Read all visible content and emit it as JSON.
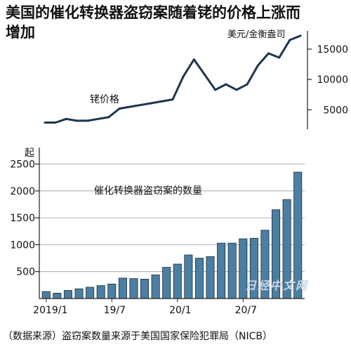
{
  "title": "美国的催化转换器盗窃案随着铑的价格上涨而增加",
  "source_note": "（数据来源）盗窃案数量来源于美国国家保险犯罪局（NICB）",
  "watermark": "日经中文网",
  "colors": {
    "bar_fill": "#4a7fa3",
    "bar_stroke": "#1e2a33",
    "line": "#1e3550"
  },
  "chart_data": [
    {
      "type": "line",
      "label": "铑价格",
      "unit": "美元/金衡盎司",
      "y_ticks": [
        5000,
        10000,
        15000
      ],
      "ylim": [
        1800,
        18000
      ],
      "values": [
        2900,
        2900,
        3500,
        3200,
        3200,
        3500,
        3800,
        5200,
        5500,
        5800,
        6100,
        6400,
        6700,
        10500,
        13300,
        10800,
        8300,
        9200,
        8300,
        9200,
        12300,
        14300,
        13600,
        16500,
        17200
      ]
    },
    {
      "type": "bar",
      "label": "催化转换器盗窃案的数量",
      "ylabel": "起",
      "y_ticks": [
        500,
        1000,
        1500,
        2000,
        2500
      ],
      "ylim": [
        0,
        2650
      ],
      "x_ticks": [
        "2019/1",
        "19/7",
        "20/1",
        "20/7"
      ],
      "values": [
        130,
        100,
        150,
        180,
        210,
        240,
        270,
        380,
        370,
        360,
        440,
        580,
        640,
        810,
        750,
        780,
        1030,
        1030,
        1110,
        1120,
        1270,
        1650,
        1840,
        2350
      ]
    }
  ]
}
